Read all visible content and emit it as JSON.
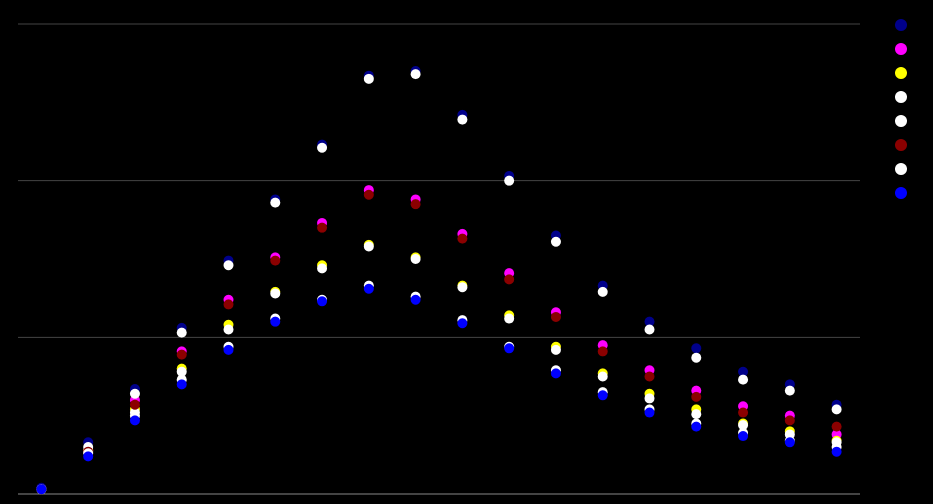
{
  "chart_data": {
    "type": "scatter",
    "x": [
      0,
      1,
      2,
      3,
      4,
      5,
      6,
      7,
      8,
      9,
      10,
      11,
      12,
      13,
      14,
      15,
      16,
      17
    ],
    "xlim": [
      -0.5,
      17.5
    ],
    "ylim": [
      0,
      3
    ],
    "yticks": [
      0,
      1,
      2,
      3
    ],
    "grid": true,
    "legend": "right",
    "series": [
      {
        "color": "#00008b",
        "values": [
          0.04,
          0.33,
          0.67,
          1.06,
          1.49,
          1.88,
          2.23,
          2.67,
          2.7,
          2.42,
          2.03,
          1.65,
          1.33,
          1.1,
          0.93,
          0.78,
          0.7,
          0.57
        ]
      },
      {
        "color": "#ff00ff",
        "values": [
          0.03,
          0.28,
          0.6,
          0.91,
          1.24,
          1.51,
          1.73,
          1.94,
          1.88,
          1.66,
          1.41,
          1.16,
          0.95,
          0.79,
          0.66,
          0.56,
          0.5,
          0.38
        ]
      },
      {
        "color": "#ffff00",
        "values": [
          0.03,
          0.28,
          0.54,
          0.8,
          1.08,
          1.29,
          1.46,
          1.59,
          1.51,
          1.33,
          1.14,
          0.94,
          0.77,
          0.64,
          0.54,
          0.45,
          0.4,
          0.34
        ]
      },
      {
        "color": "#ffffff",
        "values": [
          0.03,
          0.3,
          0.64,
          1.03,
          1.46,
          1.86,
          2.21,
          2.65,
          2.68,
          2.39,
          2.0,
          1.61,
          1.29,
          1.05,
          0.87,
          0.73,
          0.66,
          0.54
        ]
      },
      {
        "color": "#ffffff",
        "values": [
          0.03,
          0.27,
          0.52,
          0.78,
          1.05,
          1.28,
          1.44,
          1.58,
          1.5,
          1.32,
          1.12,
          0.92,
          0.75,
          0.61,
          0.51,
          0.44,
          0.38,
          0.33
        ]
      },
      {
        "color": "#8b0000",
        "values": [
          0.03,
          0.27,
          0.57,
          0.89,
          1.21,
          1.49,
          1.7,
          1.91,
          1.85,
          1.63,
          1.37,
          1.13,
          0.91,
          0.75,
          0.62,
          0.52,
          0.47,
          0.43
        ]
      },
      {
        "color": "#ffffff",
        "values": [
          0.03,
          0.26,
          0.5,
          0.73,
          0.94,
          1.12,
          1.24,
          1.33,
          1.26,
          1.11,
          0.94,
          0.79,
          0.65,
          0.54,
          0.45,
          0.39,
          0.34,
          0.3
        ]
      },
      {
        "color": "#0000ff",
        "values": [
          0.03,
          0.24,
          0.47,
          0.7,
          0.92,
          1.1,
          1.23,
          1.31,
          1.24,
          1.09,
          0.93,
          0.77,
          0.63,
          0.52,
          0.43,
          0.37,
          0.33,
          0.27
        ]
      }
    ]
  }
}
